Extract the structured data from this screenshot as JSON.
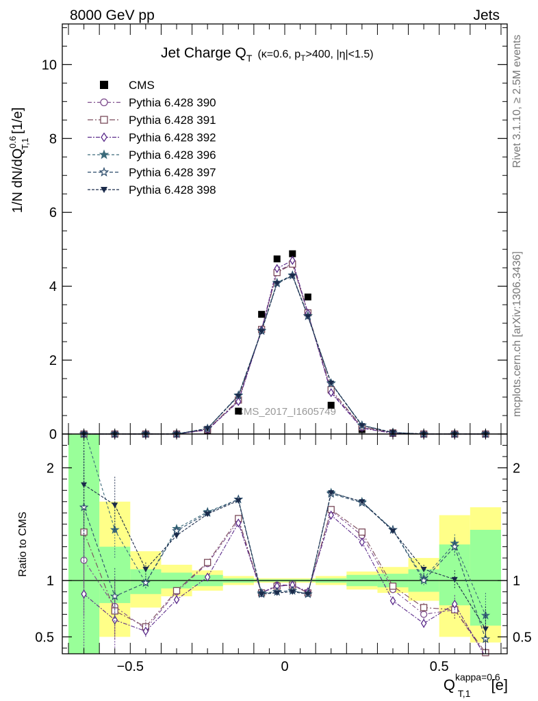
{
  "header": {
    "left": "8000 GeV pp",
    "right": "Jets"
  },
  "side_labels": {
    "rivet": "Rivet 3.1.10, ≥ 2.5M events",
    "mcplots": "mcplots.cern.ch [arXiv:1306.3436]"
  },
  "watermark": "CMS_2017_I1605749",
  "title": {
    "main": "Jet Charge Q",
    "main_sub": "T",
    "cond_pre": "(κ=0.6, p",
    "cond_sub": "T",
    "cond_post": ">400, |η|<1.5)"
  },
  "axes": {
    "ylabel_main": {
      "pre": "1/N dN/dQ",
      "sup": "0.6",
      "sub": "T,1",
      "post": " [1/e]"
    },
    "ylabel_ratio": "Ratio to CMS",
    "xlabel": {
      "pre": "Q",
      "sup": "kappa=0.6",
      "sub": "T,1",
      "post": " [e]"
    }
  },
  "colors": {
    "cms": "#000000",
    "p390": "#7c4a8c",
    "p391": "#7a4a5a",
    "p392": "#5a2a8a",
    "p396": "#3a6a7a",
    "p397": "#2a4a6a",
    "p398": "#1a2a4a",
    "band_inner": "#99ff99",
    "band_outer": "#ffff88"
  },
  "chart_data": [
    {
      "type": "scatter",
      "panel": "main",
      "x": [
        -0.65,
        -0.55,
        -0.45,
        -0.35,
        -0.25,
        -0.15,
        -0.075,
        -0.025,
        0.025,
        0.075,
        0.15,
        0.25,
        0.35,
        0.45,
        0.55,
        0.65
      ],
      "xlim": [
        -0.72,
        0.72
      ],
      "ylim": [
        0,
        11.1
      ],
      "yticks": [
        0,
        2,
        4,
        6,
        8,
        10
      ],
      "xticks": [
        -0.5,
        0,
        0.5
      ],
      "xtick_labels": [
        "−0.5",
        "0",
        "0.5"
      ],
      "legend_position": "top-left",
      "series": [
        {
          "name": "CMS",
          "marker": "square-filled",
          "values": [
            0.0,
            0.0,
            0.0,
            0.0,
            0.1,
            0.62,
            3.24,
            4.74,
            4.88,
            3.71,
            0.78,
            0.12,
            0.02,
            0.0,
            0.0,
            0.0
          ]
        },
        {
          "name": "Pythia 6.428 390",
          "marker": "circle-open",
          "values": [
            0.0,
            0.0,
            0.0,
            0.0,
            0.12,
            0.9,
            2.82,
            4.39,
            4.62,
            3.26,
            1.15,
            0.18,
            0.03,
            0.0,
            0.0,
            0.0
          ]
        },
        {
          "name": "Pythia 6.428 391",
          "marker": "square-open",
          "values": [
            0.0,
            0.0,
            0.0,
            0.0,
            0.12,
            0.92,
            2.83,
            4.37,
            4.6,
            3.28,
            1.2,
            0.19,
            0.03,
            0.0,
            0.0,
            0.0
          ]
        },
        {
          "name": "Pythia 6.428 392",
          "marker": "diamond-open",
          "values": [
            0.0,
            0.0,
            0.0,
            0.0,
            0.11,
            0.88,
            2.82,
            4.48,
            4.7,
            3.27,
            1.12,
            0.16,
            0.02,
            0.0,
            0.0,
            0.0
          ]
        },
        {
          "name": "Pythia 6.428 396",
          "marker": "star-filled",
          "values": [
            0.0,
            0.0,
            0.0,
            0.0,
            0.15,
            1.05,
            2.8,
            4.1,
            4.3,
            3.2,
            1.38,
            0.24,
            0.04,
            0.0,
            0.0,
            0.0
          ]
        },
        {
          "name": "Pythia 6.428 397",
          "marker": "star-open",
          "values": [
            0.0,
            0.0,
            0.0,
            0.0,
            0.15,
            1.04,
            2.79,
            4.08,
            4.29,
            3.19,
            1.37,
            0.23,
            0.04,
            0.0,
            0.0,
            0.0
          ]
        },
        {
          "name": "Pythia 6.428 398",
          "marker": "triangle-down-filled",
          "values": [
            0.0,
            0.0,
            0.0,
            0.0,
            0.15,
            1.03,
            2.78,
            4.08,
            4.28,
            3.18,
            1.38,
            0.23,
            0.04,
            0.0,
            0.0,
            0.0
          ]
        }
      ]
    },
    {
      "type": "scatter",
      "panel": "ratio",
      "x": [
        -0.65,
        -0.55,
        -0.45,
        -0.35,
        -0.25,
        -0.15,
        -0.075,
        -0.025,
        0.025,
        0.075,
        0.15,
        0.25,
        0.35,
        0.45,
        0.55,
        0.65
      ],
      "xlim": [
        -0.72,
        0.72
      ],
      "ylim": [
        0.35,
        2.3
      ],
      "yticks": [
        0.5,
        1,
        2
      ],
      "reference_line": 1,
      "bin_edges": [
        -0.7,
        -0.6,
        -0.5,
        -0.4,
        -0.3,
        -0.2,
        -0.1,
        -0.05,
        0,
        0.05,
        0.1,
        0.2,
        0.3,
        0.4,
        0.5,
        0.6,
        0.7
      ],
      "band_inner": [
        [
          0.25,
          2.3
        ],
        [
          0.8,
          1.3
        ],
        [
          0.88,
          1.1
        ],
        [
          0.93,
          1.07
        ],
        [
          0.95,
          1.05
        ],
        [
          0.98,
          1.02
        ],
        [
          0.99,
          1.01
        ],
        [
          0.99,
          1.01
        ],
        [
          0.99,
          1.01
        ],
        [
          0.99,
          1.01
        ],
        [
          0.98,
          1.02
        ],
        [
          0.95,
          1.05
        ],
        [
          0.94,
          1.06
        ],
        [
          0.9,
          1.1
        ],
        [
          0.78,
          1.32
        ],
        [
          0.6,
          1.45
        ]
      ],
      "band_outer": [
        [
          0.25,
          2.3
        ],
        [
          0.5,
          1.7
        ],
        [
          0.76,
          1.26
        ],
        [
          0.86,
          1.14
        ],
        [
          0.91,
          1.09
        ],
        [
          0.96,
          1.04
        ],
        [
          0.98,
          1.02
        ],
        [
          0.98,
          1.02
        ],
        [
          0.98,
          1.02
        ],
        [
          0.98,
          1.02
        ],
        [
          0.96,
          1.04
        ],
        [
          0.92,
          1.08
        ],
        [
          0.89,
          1.12
        ],
        [
          0.82,
          1.2
        ],
        [
          0.5,
          1.58
        ],
        [
          0.45,
          1.65
        ]
      ],
      "series": [
        {
          "name": "Pythia 6.428 390",
          "values": [
            1.18,
            0.77,
            0.57,
            0.9,
            1.15,
            1.53,
            0.89,
            0.96,
            0.96,
            0.89,
            1.62,
            1.4,
            0.92,
            0.7,
            0.74,
            0.34
          ],
          "err": [
            0.5,
            0.25,
            0.06,
            0.03,
            0.02,
            0.01,
            0.01,
            0.01,
            0.01,
            0.01,
            0.01,
            0.02,
            0.02,
            0.04,
            0.08,
            0.2
          ]
        },
        {
          "name": "Pythia 6.428 391",
          "values": [
            1.43,
            0.73,
            0.59,
            0.91,
            1.16,
            1.55,
            0.89,
            0.95,
            0.96,
            0.89,
            1.63,
            1.43,
            0.95,
            0.76,
            0.74,
            0.36
          ],
          "err": [
            0.5,
            0.25,
            0.06,
            0.03,
            0.02,
            0.01,
            0.01,
            0.01,
            0.01,
            0.01,
            0.01,
            0.02,
            0.02,
            0.04,
            0.08,
            0.2
          ]
        },
        {
          "name": "Pythia 6.428 392",
          "values": [
            0.88,
            0.65,
            0.55,
            0.83,
            1.03,
            1.51,
            0.89,
            0.95,
            0.96,
            0.9,
            1.58,
            1.34,
            0.82,
            0.62,
            0.79,
            0.32
          ],
          "err": [
            0.5,
            0.25,
            0.06,
            0.03,
            0.02,
            0.01,
            0.01,
            0.01,
            0.01,
            0.01,
            0.01,
            0.02,
            0.02,
            0.04,
            0.08,
            0.2
          ]
        },
        {
          "name": "Pythia 6.428 396",
          "values": [
            2.35,
            1.45,
            0.98,
            1.46,
            1.61,
            1.72,
            0.89,
            0.9,
            0.91,
            0.88,
            1.78,
            1.7,
            1.45,
            1.02,
            1.33,
            0.69
          ],
          "err": [
            0.5,
            0.25,
            0.06,
            0.03,
            0.02,
            0.01,
            0.01,
            0.01,
            0.01,
            0.01,
            0.01,
            0.02,
            0.02,
            0.04,
            0.08,
            0.2
          ]
        },
        {
          "name": "Pythia 6.428 397",
          "values": [
            1.65,
            0.86,
            0.98,
            1.44,
            1.6,
            1.72,
            0.88,
            0.9,
            0.91,
            0.88,
            1.77,
            1.69,
            1.45,
            1.0,
            1.3,
            0.48
          ],
          "err": [
            0.5,
            0.25,
            0.06,
            0.03,
            0.02,
            0.01,
            0.01,
            0.01,
            0.01,
            0.01,
            0.01,
            0.02,
            0.02,
            0.04,
            0.08,
            0.2
          ]
        },
        {
          "name": "Pythia 6.428 398",
          "values": [
            1.85,
            1.67,
            1.1,
            1.4,
            1.59,
            1.71,
            0.88,
            0.89,
            0.9,
            0.88,
            1.78,
            1.7,
            1.44,
            1.1,
            1.01,
            0.57
          ],
          "err": [
            0.5,
            0.25,
            0.06,
            0.03,
            0.02,
            0.01,
            0.01,
            0.01,
            0.01,
            0.01,
            0.01,
            0.02,
            0.02,
            0.04,
            0.08,
            0.2
          ]
        }
      ]
    }
  ]
}
